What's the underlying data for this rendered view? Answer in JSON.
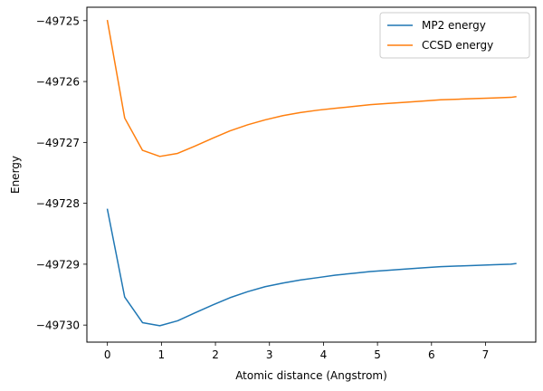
{
  "chart_data": {
    "type": "line",
    "title": "",
    "xlabel": "Atomic distance (Angstrom)",
    "ylabel": "Energy",
    "xlim": [
      -0.38,
      7.93
    ],
    "ylim": [
      -49730.28,
      -49724.78
    ],
    "xticks": [
      0,
      1,
      2,
      3,
      4,
      5,
      6,
      7
    ],
    "yticks": [
      -49730,
      -49729,
      -49728,
      -49727,
      -49726,
      -49725
    ],
    "legend_position": "top-right",
    "grid": false,
    "series": [
      {
        "name": "MP2 energy",
        "color": "#1f77b4",
        "x": [
          0.0,
          0.32,
          0.65,
          0.97,
          1.3,
          1.62,
          1.95,
          2.27,
          2.6,
          2.92,
          3.25,
          3.57,
          3.9,
          4.22,
          4.55,
          4.87,
          5.2,
          5.52,
          5.85,
          6.17,
          6.5,
          6.82,
          7.15,
          7.47,
          7.56
        ],
        "y": [
          -49728.1,
          -49729.54,
          -49729.96,
          -49730.01,
          -49729.93,
          -49729.8,
          -49729.67,
          -49729.55,
          -49729.45,
          -49729.37,
          -49729.31,
          -49729.26,
          -49729.22,
          -49729.18,
          -49729.15,
          -49729.12,
          -49729.1,
          -49729.08,
          -49729.06,
          -49729.04,
          -49729.03,
          -49729.02,
          -49729.01,
          -49729.0,
          -49728.99
        ]
      },
      {
        "name": "CCSD energy",
        "color": "#ff7f0e",
        "x": [
          0.0,
          0.32,
          0.65,
          0.97,
          1.3,
          1.62,
          1.95,
          2.27,
          2.6,
          2.92,
          3.25,
          3.57,
          3.9,
          4.22,
          4.55,
          4.87,
          5.2,
          5.52,
          5.85,
          6.17,
          6.5,
          6.82,
          7.15,
          7.47,
          7.56
        ],
        "y": [
          -49725.0,
          -49726.6,
          -49727.13,
          -49727.23,
          -49727.18,
          -49727.06,
          -49726.93,
          -49726.81,
          -49726.71,
          -49726.63,
          -49726.56,
          -49726.51,
          -49726.47,
          -49726.44,
          -49726.41,
          -49726.38,
          -49726.36,
          -49726.34,
          -49726.32,
          -49726.3,
          -49726.29,
          -49726.28,
          -49726.27,
          -49726.26,
          -49726.25
        ]
      }
    ]
  }
}
